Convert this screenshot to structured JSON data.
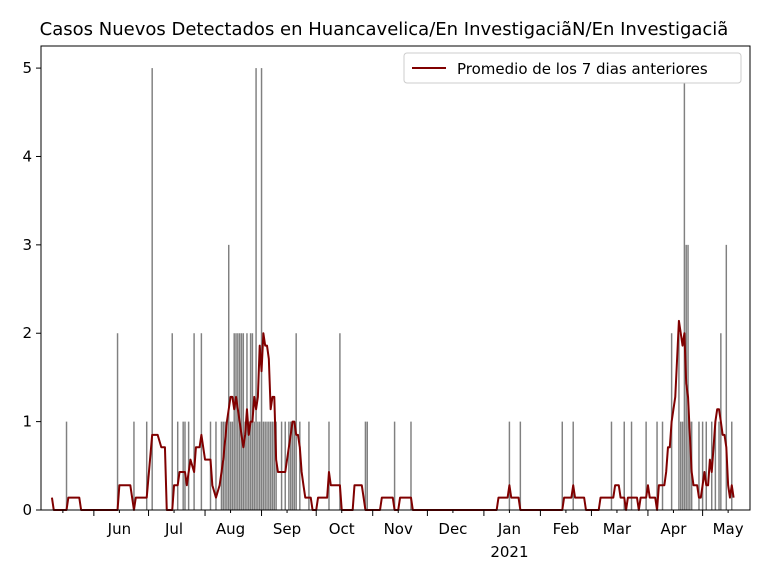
{
  "chart_data": {
    "type": "bar",
    "title": "Casos Nuevos Detectados en Huancavelica/En InvestigaciãN/En Investigaciã",
    "xlabel": "",
    "ylabel": "",
    "ylim": [
      0,
      5.25
    ],
    "yticks": [
      0,
      1,
      2,
      3,
      4,
      5
    ],
    "x_range": [
      "2020-05-03",
      "2021-05-27"
    ],
    "xticks": [
      {
        "date": "2020-06-01",
        "label": "Jun"
      },
      {
        "date": "2020-07-01",
        "label": "Jul"
      },
      {
        "date": "2020-08-01",
        "label": "Aug"
      },
      {
        "date": "2020-09-01",
        "label": "Sep"
      },
      {
        "date": "2020-10-01",
        "label": "Oct"
      },
      {
        "date": "2020-11-01",
        "label": "Nov"
      },
      {
        "date": "2020-12-01",
        "label": "Dec"
      },
      {
        "date": "2021-01-01",
        "label": "Jan"
      },
      {
        "date": "2021-02-01",
        "label": "Feb"
      },
      {
        "date": "2021-03-01",
        "label": "Mar"
      },
      {
        "date": "2021-04-01",
        "label": "Apr"
      },
      {
        "date": "2021-05-01",
        "label": "May"
      }
    ],
    "year_label": "2021",
    "grid": false,
    "legend_position": "top-right",
    "bar_color": "#808080",
    "line_color": "#800000",
    "series": [
      {
        "kind": "bar",
        "dates": [
          "2020-05-17",
          "2020-06-14",
          "2020-06-23",
          "2020-06-30",
          "2020-07-03",
          "2020-07-14",
          "2020-07-17",
          "2020-07-20",
          "2020-07-21",
          "2020-07-23",
          "2020-07-26",
          "2020-07-30",
          "2020-08-04",
          "2020-08-07",
          "2020-08-10",
          "2020-08-11",
          "2020-08-12",
          "2020-08-13",
          "2020-08-14",
          "2020-08-15",
          "2020-08-16",
          "2020-08-17",
          "2020-08-18",
          "2020-08-19",
          "2020-08-20",
          "2020-08-21",
          "2020-08-22",
          "2020-08-23",
          "2020-08-24",
          "2020-08-25",
          "2020-08-26",
          "2020-08-27",
          "2020-08-28",
          "2020-08-29",
          "2020-08-30",
          "2020-08-31",
          "2020-09-01",
          "2020-09-02",
          "2020-09-03",
          "2020-09-04",
          "2020-09-05",
          "2020-09-06",
          "2020-09-07",
          "2020-09-08",
          "2020-09-09",
          "2020-09-12",
          "2020-09-14",
          "2020-09-16",
          "2020-09-17",
          "2020-09-18",
          "2020-09-19",
          "2020-09-20",
          "2020-09-22",
          "2020-09-27",
          "2020-10-08",
          "2020-10-14",
          "2020-10-28",
          "2020-10-29",
          "2020-11-13",
          "2020-11-22",
          "2021-01-15",
          "2021-01-21",
          "2021-02-13",
          "2021-02-19",
          "2021-03-12",
          "2021-03-19",
          "2021-03-23",
          "2021-03-31",
          "2021-04-06",
          "2021-04-09",
          "2021-04-14",
          "2021-04-18",
          "2021-04-19",
          "2021-04-20",
          "2021-04-21",
          "2021-04-22",
          "2021-04-23",
          "2021-04-24",
          "2021-04-25",
          "2021-04-29",
          "2021-05-01",
          "2021-05-03",
          "2021-05-06",
          "2021-05-08",
          "2021-05-10",
          "2021-05-11",
          "2021-05-14",
          "2021-05-17"
        ],
        "values": [
          1,
          2,
          1,
          1,
          5,
          2,
          1,
          1,
          1,
          1,
          2,
          2,
          1,
          1,
          1,
          1,
          1,
          1,
          3,
          1,
          1,
          2,
          2,
          2,
          2,
          2,
          2,
          1,
          2,
          1,
          2,
          2,
          1,
          5,
          1,
          1,
          5,
          1,
          1,
          1,
          1,
          1,
          1,
          1,
          1,
          1,
          1,
          1,
          1,
          1,
          1,
          2,
          1,
          1,
          1,
          2,
          1,
          1,
          1,
          1,
          1,
          1,
          1,
          1,
          1,
          1,
          1,
          1,
          1,
          1,
          2,
          2,
          1,
          1,
          5,
          3,
          3,
          1,
          1,
          1,
          1,
          1,
          1,
          1,
          1,
          2,
          3,
          1
        ]
      },
      {
        "kind": "line",
        "name": "Promedio de los 7 dias anteriores",
        "points": [
          [
            "2020-05-09",
            0.14
          ],
          [
            "2020-05-10",
            0
          ],
          [
            "2020-05-17",
            0
          ],
          [
            "2020-05-18",
            0.14
          ],
          [
            "2020-05-24",
            0.14
          ],
          [
            "2020-05-25",
            0
          ],
          [
            "2020-06-14",
            0
          ],
          [
            "2020-06-15",
            0.28
          ],
          [
            "2020-06-21",
            0.28
          ],
          [
            "2020-06-23",
            0
          ],
          [
            "2020-06-24",
            0.14
          ],
          [
            "2020-06-30",
            0.14
          ],
          [
            "2020-07-03",
            0.85
          ],
          [
            "2020-07-06",
            0.85
          ],
          [
            "2020-07-08",
            0.71
          ],
          [
            "2020-07-10",
            0.71
          ],
          [
            "2020-07-11",
            0
          ],
          [
            "2020-07-14",
            0
          ],
          [
            "2020-07-15",
            0.28
          ],
          [
            "2020-07-17",
            0.28
          ],
          [
            "2020-07-18",
            0.43
          ],
          [
            "2020-07-21",
            0.43
          ],
          [
            "2020-07-22",
            0.28
          ],
          [
            "2020-07-24",
            0.57
          ],
          [
            "2020-07-26",
            0.43
          ],
          [
            "2020-07-27",
            0.71
          ],
          [
            "2020-07-29",
            0.71
          ],
          [
            "2020-07-30",
            0.85
          ],
          [
            "2020-07-31",
            0.71
          ],
          [
            "2020-08-01",
            0.57
          ],
          [
            "2020-08-04",
            0.57
          ],
          [
            "2020-08-05",
            0.28
          ],
          [
            "2020-08-07",
            0.14
          ],
          [
            "2020-08-09",
            0.28
          ],
          [
            "2020-08-11",
            0.57
          ],
          [
            "2020-08-13",
            1.0
          ],
          [
            "2020-08-14",
            1.14
          ],
          [
            "2020-08-15",
            1.28
          ],
          [
            "2020-08-16",
            1.28
          ],
          [
            "2020-08-17",
            1.14
          ],
          [
            "2020-08-18",
            1.28
          ],
          [
            "2020-08-19",
            1.14
          ],
          [
            "2020-08-20",
            1.0
          ],
          [
            "2020-08-21",
            0.85
          ],
          [
            "2020-08-22",
            0.71
          ],
          [
            "2020-08-23",
            0.85
          ],
          [
            "2020-08-24",
            1.14
          ],
          [
            "2020-08-25",
            0.85
          ],
          [
            "2020-08-26",
            1.0
          ],
          [
            "2020-08-27",
            1.0
          ],
          [
            "2020-08-28",
            1.28
          ],
          [
            "2020-08-29",
            1.14
          ],
          [
            "2020-08-30",
            1.28
          ],
          [
            "2020-08-31",
            1.86
          ],
          [
            "2020-09-01",
            1.57
          ],
          [
            "2020-09-02",
            2.0
          ],
          [
            "2020-09-03",
            1.86
          ],
          [
            "2020-09-04",
            1.86
          ],
          [
            "2020-09-05",
            1.71
          ],
          [
            "2020-09-06",
            1.14
          ],
          [
            "2020-09-07",
            1.28
          ],
          [
            "2020-09-08",
            1.28
          ],
          [
            "2020-09-09",
            0.57
          ],
          [
            "2020-09-10",
            0.43
          ],
          [
            "2020-09-14",
            0.43
          ],
          [
            "2020-09-15",
            0.57
          ],
          [
            "2020-09-16",
            0.71
          ],
          [
            "2020-09-17",
            0.85
          ],
          [
            "2020-09-18",
            1.0
          ],
          [
            "2020-09-19",
            1.0
          ],
          [
            "2020-09-20",
            0.85
          ],
          [
            "2020-09-21",
            0.85
          ],
          [
            "2020-09-22",
            0.71
          ],
          [
            "2020-09-23",
            0.43
          ],
          [
            "2020-09-24",
            0.28
          ],
          [
            "2020-09-25",
            0.14
          ],
          [
            "2020-09-28",
            0.14
          ],
          [
            "2020-09-29",
            0
          ],
          [
            "2020-10-01",
            0
          ],
          [
            "2020-10-02",
            0.14
          ],
          [
            "2020-10-07",
            0.14
          ],
          [
            "2020-10-08",
            0.43
          ],
          [
            "2020-10-09",
            0.28
          ],
          [
            "2020-10-14",
            0.28
          ],
          [
            "2020-10-15",
            0
          ],
          [
            "2020-10-21",
            0
          ],
          [
            "2020-10-22",
            0.28
          ],
          [
            "2020-10-26",
            0.28
          ],
          [
            "2020-10-28",
            0
          ],
          [
            "2020-11-05",
            0
          ],
          [
            "2020-11-06",
            0.14
          ],
          [
            "2020-11-12",
            0.14
          ],
          [
            "2020-11-13",
            0
          ],
          [
            "2020-11-15",
            0
          ],
          [
            "2020-11-16",
            0.14
          ],
          [
            "2020-11-22",
            0.14
          ],
          [
            "2020-11-23",
            0
          ],
          [
            "2021-01-08",
            0
          ],
          [
            "2021-01-09",
            0.14
          ],
          [
            "2021-01-14",
            0.14
          ],
          [
            "2021-01-15",
            0.28
          ],
          [
            "2021-01-16",
            0.14
          ],
          [
            "2021-01-20",
            0.14
          ],
          [
            "2021-01-21",
            0
          ],
          [
            "2021-02-13",
            0
          ],
          [
            "2021-02-14",
            0.14
          ],
          [
            "2021-02-18",
            0.14
          ],
          [
            "2021-02-19",
            0.28
          ],
          [
            "2021-02-20",
            0.14
          ],
          [
            "2021-02-25",
            0.14
          ],
          [
            "2021-02-26",
            0
          ],
          [
            "2021-03-05",
            0
          ],
          [
            "2021-03-06",
            0.14
          ],
          [
            "2021-03-13",
            0.14
          ],
          [
            "2021-03-14",
            0.28
          ],
          [
            "2021-03-16",
            0.28
          ],
          [
            "2021-03-17",
            0.14
          ],
          [
            "2021-03-19",
            0.14
          ],
          [
            "2021-03-20",
            0
          ],
          [
            "2021-03-21",
            0.14
          ],
          [
            "2021-03-26",
            0.14
          ],
          [
            "2021-03-27",
            0
          ],
          [
            "2021-03-28",
            0.14
          ],
          [
            "2021-03-31",
            0.14
          ],
          [
            "2021-04-01",
            0.28
          ],
          [
            "2021-04-02",
            0.14
          ],
          [
            "2021-04-05",
            0.14
          ],
          [
            "2021-04-06",
            0
          ],
          [
            "2021-04-07",
            0.28
          ],
          [
            "2021-04-10",
            0.28
          ],
          [
            "2021-04-11",
            0.43
          ],
          [
            "2021-04-12",
            0.71
          ],
          [
            "2021-04-13",
            0.71
          ],
          [
            "2021-04-14",
            1.0
          ],
          [
            "2021-04-15",
            1.14
          ],
          [
            "2021-04-16",
            1.28
          ],
          [
            "2021-04-17",
            1.71
          ],
          [
            "2021-04-18",
            2.14
          ],
          [
            "2021-04-19",
            2.0
          ],
          [
            "2021-04-20",
            1.86
          ],
          [
            "2021-04-21",
            2.0
          ],
          [
            "2021-04-22",
            1.43
          ],
          [
            "2021-04-23",
            1.28
          ],
          [
            "2021-04-24",
            0.85
          ],
          [
            "2021-04-25",
            0.43
          ],
          [
            "2021-04-26",
            0.28
          ],
          [
            "2021-04-28",
            0.28
          ],
          [
            "2021-04-29",
            0.14
          ],
          [
            "2021-04-30",
            0.14
          ],
          [
            "2021-05-01",
            0.28
          ],
          [
            "2021-05-02",
            0.43
          ],
          [
            "2021-05-03",
            0.28
          ],
          [
            "2021-05-04",
            0.28
          ],
          [
            "2021-05-05",
            0.57
          ],
          [
            "2021-05-06",
            0.43
          ],
          [
            "2021-05-07",
            0.71
          ],
          [
            "2021-05-08",
            1.0
          ],
          [
            "2021-05-09",
            1.14
          ],
          [
            "2021-05-10",
            1.14
          ],
          [
            "2021-05-11",
            1.0
          ],
          [
            "2021-05-12",
            0.85
          ],
          [
            "2021-05-13",
            0.85
          ],
          [
            "2021-05-14",
            0.71
          ],
          [
            "2021-05-15",
            0.28
          ],
          [
            "2021-05-16",
            0.14
          ],
          [
            "2021-05-17",
            0.28
          ],
          [
            "2021-05-18",
            0.14
          ]
        ]
      }
    ]
  }
}
